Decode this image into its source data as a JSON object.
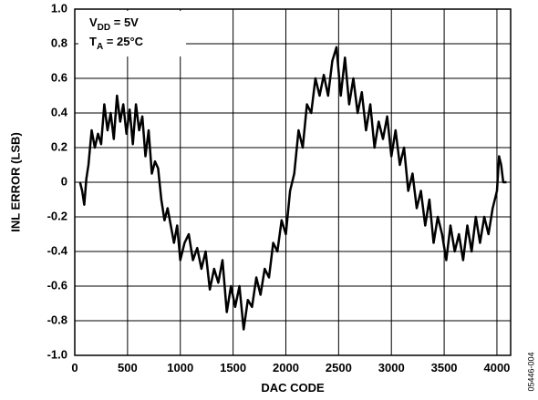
{
  "chart_data": {
    "type": "line",
    "xlabel": "DAC CODE",
    "ylabel": "INL ERROR (LSB)",
    "annotations": [
      {
        "text": "V",
        "sub": "DD",
        "rest": " = 5V"
      },
      {
        "text": "T",
        "sub": "A",
        "rest": " = 25°C"
      }
    ],
    "figure_id": "05446-004",
    "color": "#000000",
    "grid": true,
    "xlim": [
      0,
      4130
    ],
    "xticks": [
      0,
      500,
      1000,
      1500,
      2000,
      2500,
      3000,
      3500,
      4000
    ],
    "ylim": [
      -1,
      1
    ],
    "yticks": [
      {
        "value": -1,
        "label": "-1.0"
      },
      -0.8,
      -0.6,
      -0.4,
      -0.2,
      0,
      0.2,
      0.4,
      0.6,
      0.8,
      {
        "value": 1,
        "label": "1.0"
      }
    ],
    "x": [
      50,
      70,
      90,
      110,
      130,
      160,
      190,
      220,
      250,
      280,
      310,
      340,
      370,
      400,
      430,
      460,
      490,
      520,
      550,
      580,
      610,
      640,
      670,
      700,
      730,
      760,
      790,
      820,
      850,
      880,
      910,
      940,
      970,
      1000,
      1040,
      1080,
      1120,
      1160,
      1200,
      1240,
      1280,
      1320,
      1360,
      1400,
      1440,
      1480,
      1520,
      1560,
      1600,
      1640,
      1680,
      1720,
      1760,
      1800,
      1840,
      1880,
      1920,
      1960,
      2000,
      2040,
      2080,
      2120,
      2160,
      2200,
      2240,
      2280,
      2320,
      2360,
      2400,
      2440,
      2480,
      2520,
      2560,
      2600,
      2640,
      2680,
      2720,
      2760,
      2800,
      2840,
      2880,
      2920,
      2960,
      3000,
      3040,
      3080,
      3120,
      3160,
      3200,
      3240,
      3280,
      3320,
      3360,
      3400,
      3440,
      3480,
      3520,
      3560,
      3600,
      3640,
      3680,
      3720,
      3760,
      3800,
      3840,
      3880,
      3920,
      3960,
      4000,
      4020,
      4040,
      4060,
      4090
    ],
    "values": [
      0,
      -0.05,
      -0.13,
      0.02,
      0.1,
      0.3,
      0.2,
      0.28,
      0.22,
      0.45,
      0.3,
      0.4,
      0.25,
      0.5,
      0.35,
      0.45,
      0.28,
      0.42,
      0.22,
      0.45,
      0.3,
      0.38,
      0.15,
      0.3,
      0.05,
      0.12,
      0.08,
      -0.1,
      -0.22,
      -0.15,
      -0.25,
      -0.35,
      -0.25,
      -0.45,
      -0.35,
      -0.3,
      -0.45,
      -0.38,
      -0.5,
      -0.4,
      -0.62,
      -0.5,
      -0.58,
      -0.45,
      -0.75,
      -0.6,
      -0.72,
      -0.6,
      -0.85,
      -0.68,
      -0.72,
      -0.55,
      -0.65,
      -0.5,
      -0.55,
      -0.35,
      -0.4,
      -0.22,
      -0.3,
      -0.05,
      0.05,
      0.3,
      0.2,
      0.45,
      0.4,
      0.6,
      0.5,
      0.62,
      0.5,
      0.7,
      0.78,
      0.5,
      0.72,
      0.45,
      0.6,
      0.4,
      0.52,
      0.3,
      0.45,
      0.2,
      0.35,
      0.25,
      0.38,
      0.15,
      0.3,
      0.1,
      0.2,
      -0.05,
      0.05,
      -0.15,
      -0.05,
      -0.25,
      -0.1,
      -0.35,
      -0.2,
      -0.3,
      -0.45,
      -0.25,
      -0.4,
      -0.3,
      -0.45,
      -0.25,
      -0.4,
      -0.2,
      -0.35,
      -0.2,
      -0.3,
      -0.15,
      -0.05,
      0.15,
      0.1,
      0,
      0
    ]
  }
}
